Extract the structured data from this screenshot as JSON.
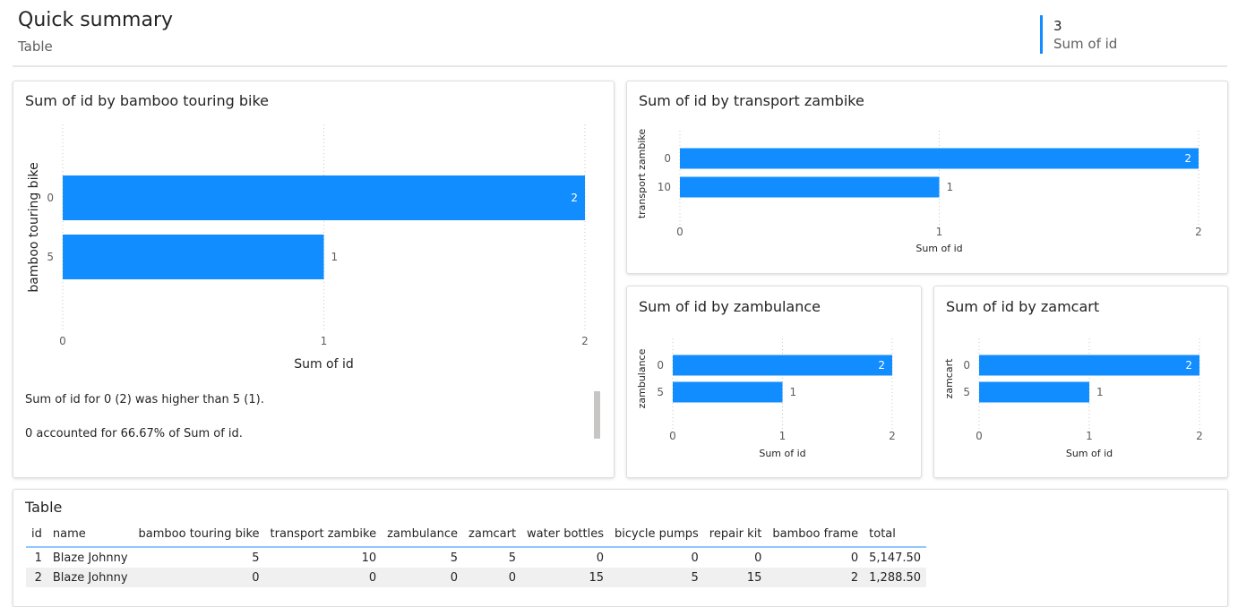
{
  "header": {
    "title": "Quick summary",
    "subtitle": "Table",
    "kpi": {
      "value": "3",
      "label": "Sum of id"
    }
  },
  "colors": {
    "bar": "#118dff",
    "accent": "#118dff"
  },
  "charts": {
    "bamboo": {
      "title": "Sum of id by bamboo touring bike",
      "xlabel": "Sum of id",
      "ylabel": "bamboo touring bike",
      "narrative": [
        "Sum of id for 0 (2) was higher than 5 (1).",
        "0 accounted for 66.67% of Sum of id."
      ]
    },
    "transport": {
      "title": "Sum of id by transport zambike",
      "xlabel": "Sum of id",
      "ylabel": "transport zambike"
    },
    "zambulance": {
      "title": "Sum of id by zambulance",
      "xlabel": "Sum of id",
      "ylabel": "zambulance"
    },
    "zamcart": {
      "title": "Sum of id by zamcart",
      "xlabel": "Sum of id",
      "ylabel": "zamcart"
    }
  },
  "chart_data": [
    {
      "type": "bar",
      "orientation": "horizontal",
      "title": "Sum of id by bamboo touring bike",
      "xlabel": "Sum of id",
      "ylabel": "bamboo touring bike",
      "categories": [
        "0",
        "5"
      ],
      "values": [
        2,
        1
      ],
      "xlim": [
        0,
        2
      ],
      "xticks": [
        "0",
        "1",
        "2"
      ],
      "grid": true
    },
    {
      "type": "bar",
      "orientation": "horizontal",
      "title": "Sum of id by transport zambike",
      "xlabel": "Sum of id",
      "ylabel": "transport zambike",
      "categories": [
        "0",
        "10"
      ],
      "values": [
        2,
        1
      ],
      "xlim": [
        0,
        2
      ],
      "xticks": [
        "0",
        "1",
        "2"
      ],
      "grid": true
    },
    {
      "type": "bar",
      "orientation": "horizontal",
      "title": "Sum of id by zambulance",
      "xlabel": "Sum of id",
      "ylabel": "zambulance",
      "categories": [
        "0",
        "5"
      ],
      "values": [
        2,
        1
      ],
      "xlim": [
        0,
        2
      ],
      "xticks": [
        "0",
        "1",
        "2"
      ],
      "grid": true
    },
    {
      "type": "bar",
      "orientation": "horizontal",
      "title": "Sum of id by zamcart",
      "xlabel": "Sum of id",
      "ylabel": "zamcart",
      "categories": [
        "0",
        "5"
      ],
      "values": [
        2,
        1
      ],
      "xlim": [
        0,
        2
      ],
      "xticks": [
        "0",
        "1",
        "2"
      ],
      "grid": true
    }
  ],
  "table": {
    "title": "Table",
    "columns": [
      "id",
      "name",
      "bamboo touring bike",
      "transport zambike",
      "zambulance",
      "zamcart",
      "water bottles",
      "bicycle pumps",
      "repair kit",
      "bamboo frame",
      "total"
    ],
    "rows": [
      [
        "1",
        "Blaze Johnny",
        "5",
        "10",
        "5",
        "5",
        "0",
        "0",
        "0",
        "0",
        "5,147.50"
      ],
      [
        "2",
        "Blaze Johnny",
        "0",
        "0",
        "0",
        "0",
        "15",
        "5",
        "15",
        "2",
        "1,288.50"
      ]
    ]
  }
}
